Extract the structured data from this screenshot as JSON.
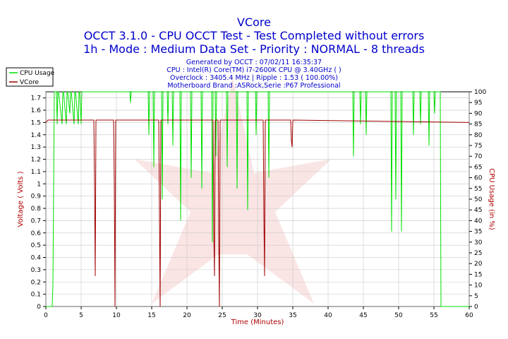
{
  "chart_data": {
    "type": "line",
    "title": "VCore",
    "subtitle_1": "OCCT 3.1.0 - CPU OCCT Test - Test Completed without errors",
    "subtitle_2": "1h - Mode : Medium Data Set - Priority : NORMAL - 8 threads",
    "info_lines": [
      "Generated by OCCT : 07/02/11 16:35:37",
      "CPU : Intel(R) Core(TM) i7-2600K CPU @ 3.40GHz (  )",
      "Overclock : 3405.4 MHz | Ripple : 1.53 ( 100.00%)",
      "Motherboard Brand :ASRock,Serie :P67 Professional"
    ],
    "xlabel": "Time (Minutes)",
    "ylabel_left": "Voltage ( Volts )",
    "ylabel_right": "CPU Usage (in %)",
    "xlim": [
      0,
      60
    ],
    "ylim_left": [
      0,
      1.75
    ],
    "ylim_right": [
      0,
      100
    ],
    "x_ticks": [
      "0",
      "5",
      "10",
      "15",
      "20",
      "25",
      "30",
      "35",
      "40",
      "45",
      "50",
      "55",
      "60"
    ],
    "y_left_ticks": [
      "0",
      "0.1",
      "0.2",
      "0.3",
      "0.4",
      "0.5",
      "0.6",
      "0.7",
      "0.8",
      "0.9",
      "1",
      "1.1",
      "1.2",
      "1.3",
      "1.4",
      "1.5",
      "1.6",
      "1.7"
    ],
    "y_right_ticks": [
      "0",
      "5",
      "10",
      "15",
      "20",
      "25",
      "30",
      "35",
      "40",
      "45",
      "50",
      "55",
      "60",
      "65",
      "70",
      "75",
      "80",
      "85",
      "90",
      "95",
      "100"
    ],
    "grid": true,
    "legend_position": "top-left",
    "colors": {
      "cpu_usage": "#00e000",
      "vcore": "#a00000",
      "axis_labels": "#b00000",
      "title": "#0000cc",
      "info": "#0000cc",
      "grid": "#c8c8c8"
    },
    "series": [
      {
        "name": "CPU Usage",
        "axis": "right",
        "x": [
          0,
          0.9,
          1.0,
          1.1,
          1.2,
          1.5,
          1.6,
          1.7,
          1.8,
          2.3,
          2.4,
          2.5,
          2.9,
          3.0,
          3.1,
          3.4,
          3.5,
          3.6,
          4.0,
          4.1,
          4.2,
          4.6,
          4.7,
          4.8,
          5.0,
          5.1,
          5.2,
          11.9,
          12.0,
          12.1,
          14.5,
          14.6,
          14.7,
          15.2,
          15.3,
          15.4,
          16.4,
          16.5,
          16.6,
          17.2,
          17.3,
          17.4,
          17.9,
          18.0,
          18.1,
          19.0,
          19.1,
          19.2,
          20.5,
          20.6,
          20.7,
          22.0,
          22.1,
          22.2,
          23.5,
          23.6,
          23.7,
          24.0,
          24.1,
          24.2,
          25.6,
          25.7,
          25.8,
          27.0,
          27.1,
          27.2,
          28.5,
          28.6,
          28.7,
          29.7,
          29.8,
          29.9,
          31.5,
          31.6,
          31.7,
          43.5,
          43.6,
          43.7,
          44.5,
          44.6,
          44.7,
          45.3,
          45.4,
          45.5,
          48.9,
          49.0,
          49.1,
          49.5,
          49.6,
          49.7,
          50.3,
          50.4,
          50.5,
          52.0,
          52.1,
          52.2,
          53.0,
          53.1,
          53.2,
          54.2,
          54.3,
          54.4,
          55.0,
          55.1,
          55.2,
          55.9,
          56.0,
          56.1,
          60
        ],
        "values": [
          0,
          0,
          10,
          55,
          100,
          100,
          85,
          100,
          100,
          85,
          100,
          100,
          85,
          100,
          100,
          90,
          100,
          100,
          85,
          100,
          100,
          85,
          100,
          100,
          85,
          100,
          100,
          100,
          95,
          100,
          100,
          80,
          100,
          100,
          65,
          100,
          100,
          50,
          100,
          100,
          85,
          100,
          100,
          75,
          100,
          100,
          40,
          100,
          100,
          60,
          100,
          100,
          55,
          100,
          100,
          30,
          100,
          100,
          70,
          100,
          100,
          65,
          100,
          100,
          55,
          100,
          100,
          45,
          100,
          100,
          80,
          100,
          100,
          60,
          100,
          100,
          70,
          100,
          100,
          85,
          100,
          100,
          80,
          100,
          100,
          35,
          100,
          100,
          50,
          100,
          100,
          35,
          100,
          100,
          80,
          100,
          100,
          85,
          100,
          100,
          75,
          100,
          100,
          90,
          100,
          100,
          0,
          0,
          0
        ]
      },
      {
        "name": "VCore",
        "axis": "left",
        "x": [
          0,
          0.3,
          6.8,
          6.9,
          7.0,
          7.1,
          9.6,
          9.7,
          9.8,
          9.9,
          16.0,
          16.1,
          16.2,
          16.3,
          23.7,
          23.8,
          23.9,
          24.0,
          24.4,
          24.5,
          24.6,
          24.7,
          30.8,
          30.9,
          31.0,
          31.1,
          34.7,
          34.8,
          34.9,
          35.0,
          60
        ],
        "values": [
          1.5,
          1.52,
          1.52,
          1.0,
          0.25,
          1.52,
          1.52,
          1.0,
          0.0,
          1.52,
          1.52,
          0.75,
          0.0,
          1.52,
          1.52,
          0.6,
          0.25,
          1.52,
          1.52,
          0.6,
          0.0,
          1.52,
          1.52,
          0.75,
          0.25,
          1.52,
          1.52,
          1.35,
          1.3,
          1.52,
          1.5
        ]
      }
    ]
  }
}
